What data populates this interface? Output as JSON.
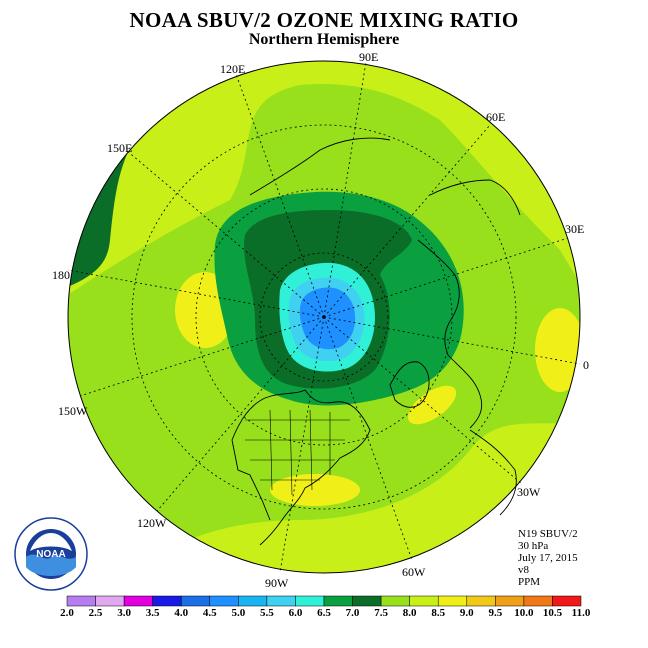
{
  "header": {
    "title": "NOAA SBUV/2 OZONE MIXING RATIO",
    "subtitle": "Northern Hemisphere"
  },
  "longitude_labels": [
    {
      "id": "lon-90e",
      "text": "90E"
    },
    {
      "id": "lon-60e",
      "text": "60E"
    },
    {
      "id": "lon-30e",
      "text": "30E"
    },
    {
      "id": "lon-0",
      "text": "0"
    },
    {
      "id": "lon-30w",
      "text": "30W"
    },
    {
      "id": "lon-60w",
      "text": "60W"
    },
    {
      "id": "lon-90w",
      "text": "90W"
    },
    {
      "id": "lon-120w",
      "text": "120W"
    },
    {
      "id": "lon-150w",
      "text": "150W"
    },
    {
      "id": "lon-180",
      "text": "180"
    },
    {
      "id": "lon-150e",
      "text": "150E"
    },
    {
      "id": "lon-120e",
      "text": "120E"
    }
  ],
  "info": {
    "instrument": "N19 SBUV/2",
    "level": "30 hPa",
    "date": "July 17, 2015",
    "version": "v8",
    "units": "PPM"
  },
  "colorbar": {
    "ticks": [
      "2.0",
      "2.5",
      "3.0",
      "3.5",
      "4.0",
      "4.5",
      "5.0",
      "5.5",
      "6.0",
      "6.5",
      "7.0",
      "7.5",
      "8.0",
      "8.5",
      "9.0",
      "9.5",
      "10.0",
      "10.5",
      "11.0"
    ],
    "colors": [
      "#b67cf0",
      "#e0a8f0",
      "#e000e0",
      "#1a1ae6",
      "#1a6ee6",
      "#1e90ff",
      "#1ab4f0",
      "#40d0f0",
      "#30f0d8",
      "#0aa040",
      "#0a6e28",
      "#98e01c",
      "#c8f018",
      "#f0f018",
      "#f0c818",
      "#f0a018",
      "#f07818",
      "#f01818",
      "#906040"
    ]
  },
  "map_colors": {
    "base_outer": "#c8f018",
    "band_light": "#98e01c",
    "ring_mid": "#0aa040",
    "ring_dark": "#0a6e28",
    "core_cyan": "#30f0d8",
    "core_light_blue": "#40d0f0",
    "core_blue": "#1e90ff",
    "patch_yellow": "#f0f018",
    "land_outline": "#000000"
  },
  "logo": {
    "text": "NOAA",
    "ring_text": "NATIONAL OCEANIC AND ATMOSPHERIC ADMINISTRATION · U.S. DEPARTMENT OF COMMERCE"
  }
}
